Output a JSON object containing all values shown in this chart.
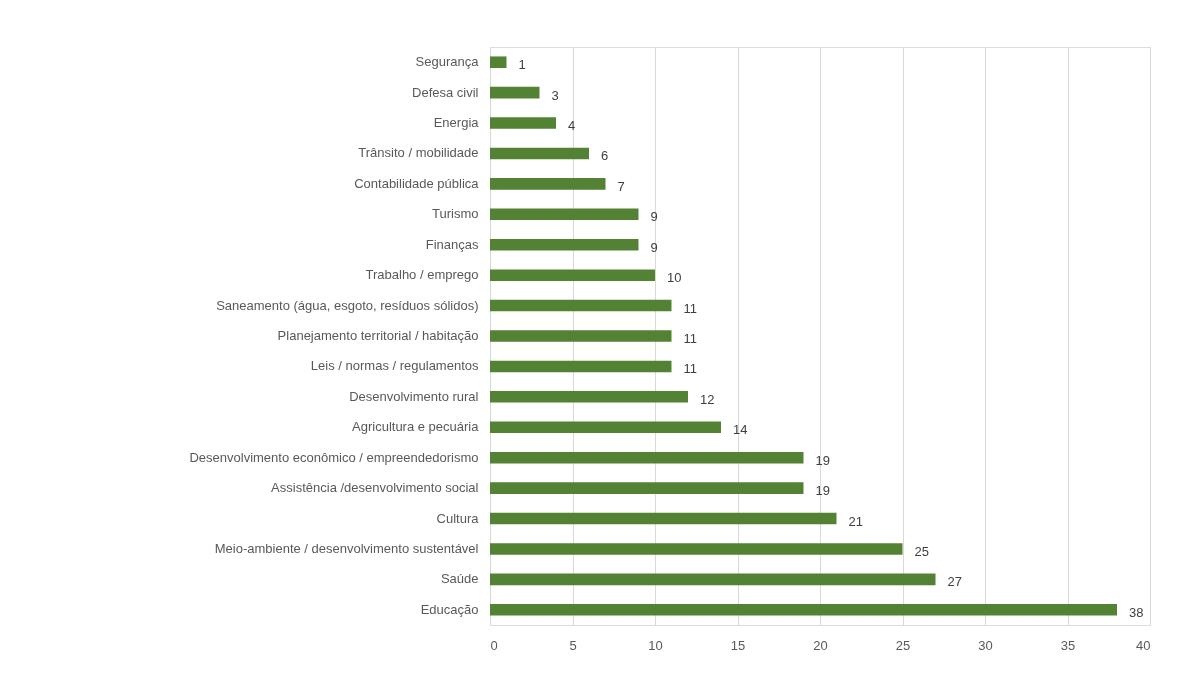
{
  "chart_data": {
    "type": "bar",
    "orientation": "horizontal",
    "categories": [
      "Segurança",
      "Defesa civil",
      "Energia",
      "Trânsito / mobilidade",
      "Contabilidade pública",
      "Turismo",
      "Finanças",
      "Trabalho / emprego",
      "Saneamento (água, esgoto, resíduos sólidos)",
      "Planejamento territorial / habitação",
      "Leis / normas / regulamentos",
      "Desenvolvimento rural",
      "Agricultura e pecuária",
      "Desenvolvimento econômico / empreendedorismo",
      "Assistência /desenvolvimento social",
      "Cultura",
      "Meio-ambiente / desenvolvimento sustentável",
      "Saúde",
      "Educação"
    ],
    "values": [
      1,
      3,
      4,
      6,
      7,
      9,
      9,
      10,
      11,
      11,
      11,
      12,
      14,
      19,
      19,
      21,
      25,
      27,
      38
    ],
    "color": "#548235",
    "xlim": [
      0,
      40
    ],
    "xticks": [
      0,
      5,
      10,
      15,
      20,
      25,
      30,
      35,
      40
    ],
    "grid": "x",
    "data_labels": true
  }
}
